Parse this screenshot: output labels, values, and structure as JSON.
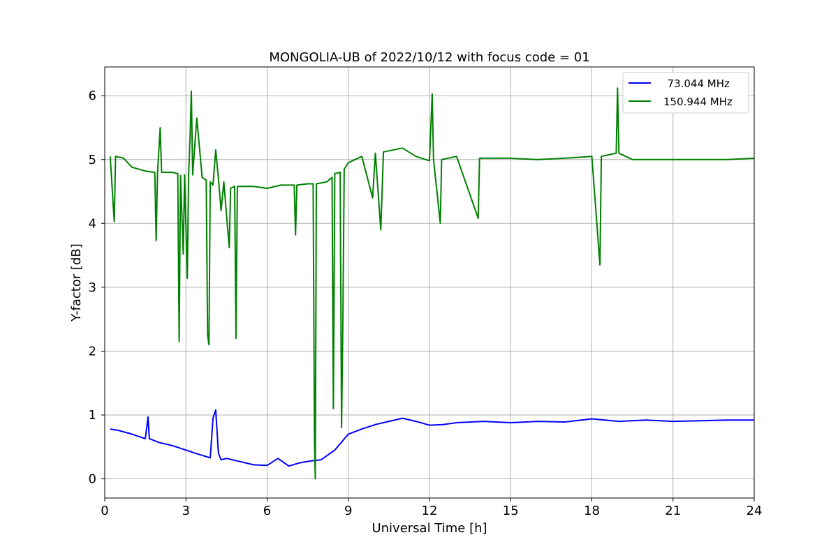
{
  "chart_data": {
    "type": "line",
    "title": "MONGOLIA-UB of 2022/10/12 with focus code = 01",
    "xlabel": "Universal Time [h]",
    "ylabel": "Y-factor [dB]",
    "xlim": [
      0,
      24
    ],
    "ylim": [
      -0.3,
      6.45
    ],
    "xticks": [
      0,
      3,
      6,
      9,
      12,
      15,
      18,
      21,
      24
    ],
    "yticks": [
      0,
      1,
      2,
      3,
      4,
      5,
      6
    ],
    "grid": true,
    "legend_position": "top-right",
    "series": [
      {
        "name": "  73.044 MHz",
        "color": "#0000ff",
        "points": [
          [
            0.2,
            0.78
          ],
          [
            0.5,
            0.76
          ],
          [
            1.0,
            0.7
          ],
          [
            1.5,
            0.63
          ],
          [
            1.6,
            0.97
          ],
          [
            1.65,
            0.63
          ],
          [
            2.0,
            0.57
          ],
          [
            2.5,
            0.52
          ],
          [
            3.0,
            0.45
          ],
          [
            3.5,
            0.38
          ],
          [
            3.9,
            0.33
          ],
          [
            4.0,
            0.95
          ],
          [
            4.1,
            1.08
          ],
          [
            4.2,
            0.4
          ],
          [
            4.3,
            0.3
          ],
          [
            4.5,
            0.32
          ],
          [
            5.0,
            0.27
          ],
          [
            5.5,
            0.22
          ],
          [
            6.0,
            0.21
          ],
          [
            6.4,
            0.32
          ],
          [
            6.8,
            0.2
          ],
          [
            7.2,
            0.25
          ],
          [
            7.6,
            0.28
          ],
          [
            8.0,
            0.3
          ],
          [
            8.5,
            0.45
          ],
          [
            9.0,
            0.7
          ],
          [
            9.5,
            0.78
          ],
          [
            10.0,
            0.85
          ],
          [
            10.5,
            0.9
          ],
          [
            11.0,
            0.95
          ],
          [
            11.5,
            0.9
          ],
          [
            12.0,
            0.84
          ],
          [
            12.5,
            0.85
          ],
          [
            13.0,
            0.88
          ],
          [
            14.0,
            0.9
          ],
          [
            15.0,
            0.88
          ],
          [
            16.0,
            0.9
          ],
          [
            17.0,
            0.89
          ],
          [
            18.0,
            0.94
          ],
          [
            19.0,
            0.9
          ],
          [
            20.0,
            0.92
          ],
          [
            21.0,
            0.9
          ],
          [
            22.0,
            0.91
          ],
          [
            23.0,
            0.92
          ],
          [
            24.0,
            0.92
          ]
        ]
      },
      {
        "name": "150.944 MHz",
        "color": "#008000",
        "points": [
          [
            0.2,
            5.05
          ],
          [
            0.35,
            4.03
          ],
          [
            0.4,
            5.05
          ],
          [
            0.7,
            5.02
          ],
          [
            1.0,
            4.88
          ],
          [
            1.5,
            4.82
          ],
          [
            1.85,
            4.8
          ],
          [
            1.9,
            3.73
          ],
          [
            1.95,
            4.8
          ],
          [
            2.05,
            5.5
          ],
          [
            2.1,
            4.8
          ],
          [
            2.5,
            4.8
          ],
          [
            2.7,
            4.78
          ],
          [
            2.75,
            2.15
          ],
          [
            2.8,
            4.75
          ],
          [
            2.9,
            3.52
          ],
          [
            2.95,
            4.76
          ],
          [
            3.05,
            3.14
          ],
          [
            3.1,
            4.76
          ],
          [
            3.15,
            5.33
          ],
          [
            3.2,
            6.07
          ],
          [
            3.25,
            4.76
          ],
          [
            3.4,
            5.65
          ],
          [
            3.6,
            4.72
          ],
          [
            3.75,
            4.68
          ],
          [
            3.8,
            2.25
          ],
          [
            3.85,
            2.1
          ],
          [
            3.9,
            4.65
          ],
          [
            4.0,
            4.6
          ],
          [
            4.1,
            5.15
          ],
          [
            4.2,
            4.7
          ],
          [
            4.3,
            4.2
          ],
          [
            4.4,
            4.65
          ],
          [
            4.6,
            3.62
          ],
          [
            4.65,
            4.55
          ],
          [
            4.8,
            4.58
          ],
          [
            4.85,
            2.2
          ],
          [
            4.9,
            4.58
          ],
          [
            5.5,
            4.58
          ],
          [
            6.0,
            4.55
          ],
          [
            6.5,
            4.6
          ],
          [
            7.0,
            4.6
          ],
          [
            7.05,
            3.82
          ],
          [
            7.1,
            4.6
          ],
          [
            7.5,
            4.62
          ],
          [
            7.7,
            4.62
          ],
          [
            7.75,
            0.65
          ],
          [
            7.78,
            0.0
          ],
          [
            7.82,
            4.62
          ],
          [
            8.2,
            4.65
          ],
          [
            8.4,
            4.72
          ],
          [
            8.45,
            1.1
          ],
          [
            8.5,
            4.78
          ],
          [
            8.7,
            4.8
          ],
          [
            8.75,
            0.8
          ],
          [
            8.8,
            2.5
          ],
          [
            8.85,
            4.85
          ],
          [
            9.0,
            4.95
          ],
          [
            9.5,
            5.05
          ],
          [
            9.9,
            4.4
          ],
          [
            10.0,
            5.1
          ],
          [
            10.2,
            3.9
          ],
          [
            10.3,
            5.12
          ],
          [
            11.0,
            5.18
          ],
          [
            11.5,
            5.05
          ],
          [
            12.0,
            4.98
          ],
          [
            12.1,
            6.03
          ],
          [
            12.15,
            5.0
          ],
          [
            12.4,
            4.0
          ],
          [
            12.45,
            5.0
          ],
          [
            13.0,
            5.05
          ],
          [
            13.8,
            4.08
          ],
          [
            13.85,
            5.02
          ],
          [
            15.0,
            5.02
          ],
          [
            16.0,
            5.0
          ],
          [
            17.0,
            5.02
          ],
          [
            18.0,
            5.05
          ],
          [
            18.3,
            3.35
          ],
          [
            18.35,
            5.05
          ],
          [
            18.9,
            5.1
          ],
          [
            18.95,
            6.12
          ],
          [
            19.0,
            5.1
          ],
          [
            19.5,
            5.0
          ],
          [
            20.0,
            5.0
          ],
          [
            21.0,
            5.0
          ],
          [
            22.0,
            5.0
          ],
          [
            23.0,
            5.0
          ],
          [
            24.0,
            5.02
          ]
        ]
      }
    ]
  }
}
